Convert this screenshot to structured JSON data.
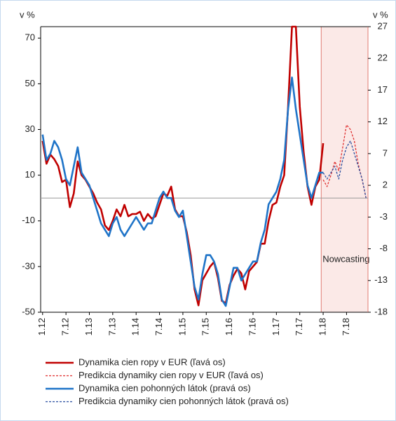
{
  "chart_data": {
    "type": "line",
    "y_label": "v %",
    "y2_label": "v %",
    "annotation": "Nowcasting",
    "categories": [
      "1.12",
      null,
      null,
      null,
      null,
      null,
      "7.12",
      null,
      null,
      null,
      null,
      null,
      "1.13",
      null,
      null,
      null,
      null,
      null,
      "7.13",
      null,
      null,
      null,
      null,
      null,
      "1.14",
      null,
      null,
      null,
      null,
      null,
      "7.14",
      null,
      null,
      null,
      null,
      null,
      "1.15",
      null,
      null,
      null,
      null,
      null,
      "7.15",
      null,
      null,
      null,
      null,
      null,
      "1.16",
      null,
      null,
      null,
      null,
      null,
      "7.16",
      null,
      null,
      null,
      null,
      null,
      "1.17",
      null,
      null,
      null,
      null,
      null,
      "7.17",
      null,
      null,
      null,
      null,
      null,
      "1.18",
      null,
      null,
      null,
      null,
      null,
      "7.18",
      null,
      null,
      null,
      null,
      null
    ],
    "ylim": [
      -50,
      75
    ],
    "yticks": [
      -50,
      -30,
      -10,
      10,
      30,
      50,
      70
    ],
    "y2lim": [
      -18,
      27
    ],
    "y2ticks": [
      -18,
      -13,
      -8,
      -3,
      2,
      7,
      12,
      17,
      22,
      27
    ],
    "series": [
      {
        "name": "Dynamika cien ropy v EUR (ľavá os)",
        "color": "#c00000",
        "style": "solid",
        "axis": "y",
        "values": [
          25,
          15,
          19,
          17,
          14,
          7,
          8,
          -4,
          2,
          16,
          10,
          8,
          5,
          2,
          -2,
          -5,
          -12,
          -14,
          -10,
          -5,
          -8,
          -3,
          -8,
          -7,
          -7,
          -6,
          -10,
          -7,
          -9,
          -8,
          -3,
          2,
          1,
          5,
          -5,
          -8,
          -8,
          -15,
          -25,
          -40,
          -47,
          -36,
          -33,
          -30,
          -28,
          -35,
          -45,
          -46,
          -38,
          -34,
          -31,
          -33,
          -40,
          -32,
          -30,
          -28,
          -20,
          -20,
          -10,
          -3,
          -2,
          5,
          10,
          40,
          75,
          75,
          40,
          20,
          5,
          -3,
          5,
          8,
          24,
          null,
          null,
          null,
          null,
          null,
          null,
          null,
          null,
          null,
          null,
          null
        ]
      },
      {
        "name": "Predikcia dynamiky cien ropy v EUR (ľavá os)",
        "color": "#e03030",
        "style": "dashed",
        "axis": "y",
        "values": [
          null,
          null,
          null,
          null,
          null,
          null,
          null,
          null,
          null,
          null,
          null,
          null,
          null,
          null,
          null,
          null,
          null,
          null,
          null,
          null,
          null,
          null,
          null,
          null,
          null,
          null,
          null,
          null,
          null,
          null,
          null,
          null,
          null,
          null,
          null,
          null,
          null,
          null,
          null,
          null,
          null,
          null,
          null,
          null,
          null,
          null,
          null,
          null,
          null,
          null,
          null,
          null,
          null,
          null,
          null,
          null,
          null,
          null,
          null,
          null,
          null,
          null,
          null,
          null,
          null,
          null,
          null,
          null,
          null,
          null,
          null,
          null,
          8,
          5,
          10,
          16,
          12,
          22,
          32,
          30,
          25,
          15,
          8,
          0
        ]
      },
      {
        "name": "Dynamika cien pohonných látok (pravá os)",
        "color": "#1f74c8",
        "style": "solid",
        "axis": "y2",
        "values": [
          10,
          6,
          7,
          9,
          8,
          6,
          3,
          2,
          5,
          8,
          4,
          3,
          2,
          0,
          -2,
          -4,
          -5,
          -6,
          -4,
          -3,
          -5,
          -6,
          -5,
          -4,
          -3,
          -4,
          -5,
          -4,
          -4,
          -2,
          0,
          1,
          0,
          0,
          -2,
          -3,
          -2,
          -6,
          -10,
          -14,
          -16,
          -12,
          -9,
          -9,
          -10,
          -12,
          -16,
          -17,
          -14,
          -11,
          -11,
          -13,
          -12,
          -11,
          -10,
          -10,
          -7,
          -5,
          -1,
          0,
          1,
          3,
          6,
          14,
          19,
          14,
          10,
          6,
          2,
          0,
          2,
          4,
          4,
          null,
          null,
          null,
          null,
          null,
          null,
          null,
          null,
          null,
          null,
          null
        ]
      },
      {
        "name": "Predikcia dynamiky cien pohonných látok (pravá os)",
        "color": "#2a4fa0",
        "style": "dashed",
        "axis": "y2",
        "values": [
          null,
          null,
          null,
          null,
          null,
          null,
          null,
          null,
          null,
          null,
          null,
          null,
          null,
          null,
          null,
          null,
          null,
          null,
          null,
          null,
          null,
          null,
          null,
          null,
          null,
          null,
          null,
          null,
          null,
          null,
          null,
          null,
          null,
          null,
          null,
          null,
          null,
          null,
          null,
          null,
          null,
          null,
          null,
          null,
          null,
          null,
          null,
          null,
          null,
          null,
          null,
          null,
          null,
          null,
          null,
          null,
          null,
          null,
          null,
          null,
          null,
          null,
          null,
          null,
          null,
          null,
          null,
          null,
          null,
          null,
          null,
          null,
          4,
          3,
          4,
          5,
          3,
          6,
          8,
          9,
          7,
          5,
          3,
          0
        ]
      }
    ]
  }
}
